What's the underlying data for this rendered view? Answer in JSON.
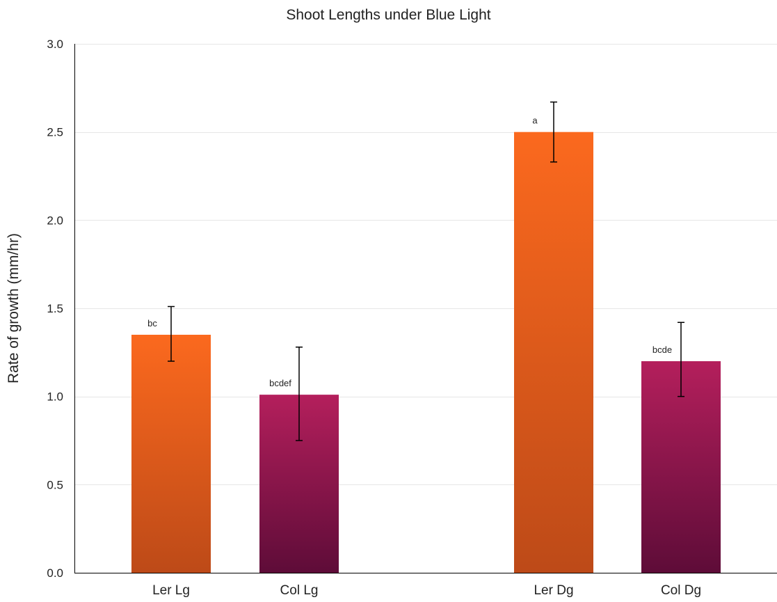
{
  "chart_data": {
    "type": "bar",
    "title": "Shoot Lengths under Blue Light",
    "xlabel": "",
    "ylabel": "Rate of growth (mm/hr)",
    "ylim": [
      0,
      3.0
    ],
    "yticks": [
      "0.0",
      "0.5",
      "1.0",
      "1.5",
      "2.0",
      "2.5",
      "3.0"
    ],
    "grid": true,
    "categories": [
      "Ler Lg",
      "Col Lg",
      "Ler Dg",
      "Col Dg"
    ],
    "values": [
      1.35,
      1.01,
      2.5,
      1.2
    ],
    "error_low": [
      1.2,
      0.75,
      2.33,
      1.0
    ],
    "error_high": [
      1.51,
      1.28,
      2.67,
      1.42
    ],
    "annotations": [
      "bc",
      "bcdef",
      "a",
      "bcde"
    ],
    "colors": {
      "Ler": {
        "top": "#fb691e",
        "bottom": "#bd4a18"
      },
      "Col": {
        "top": "#b41f5c",
        "bottom": "#5e0c38"
      },
      "grid": "#e6e6e6",
      "axis": "#000000",
      "text": "#222222"
    }
  }
}
